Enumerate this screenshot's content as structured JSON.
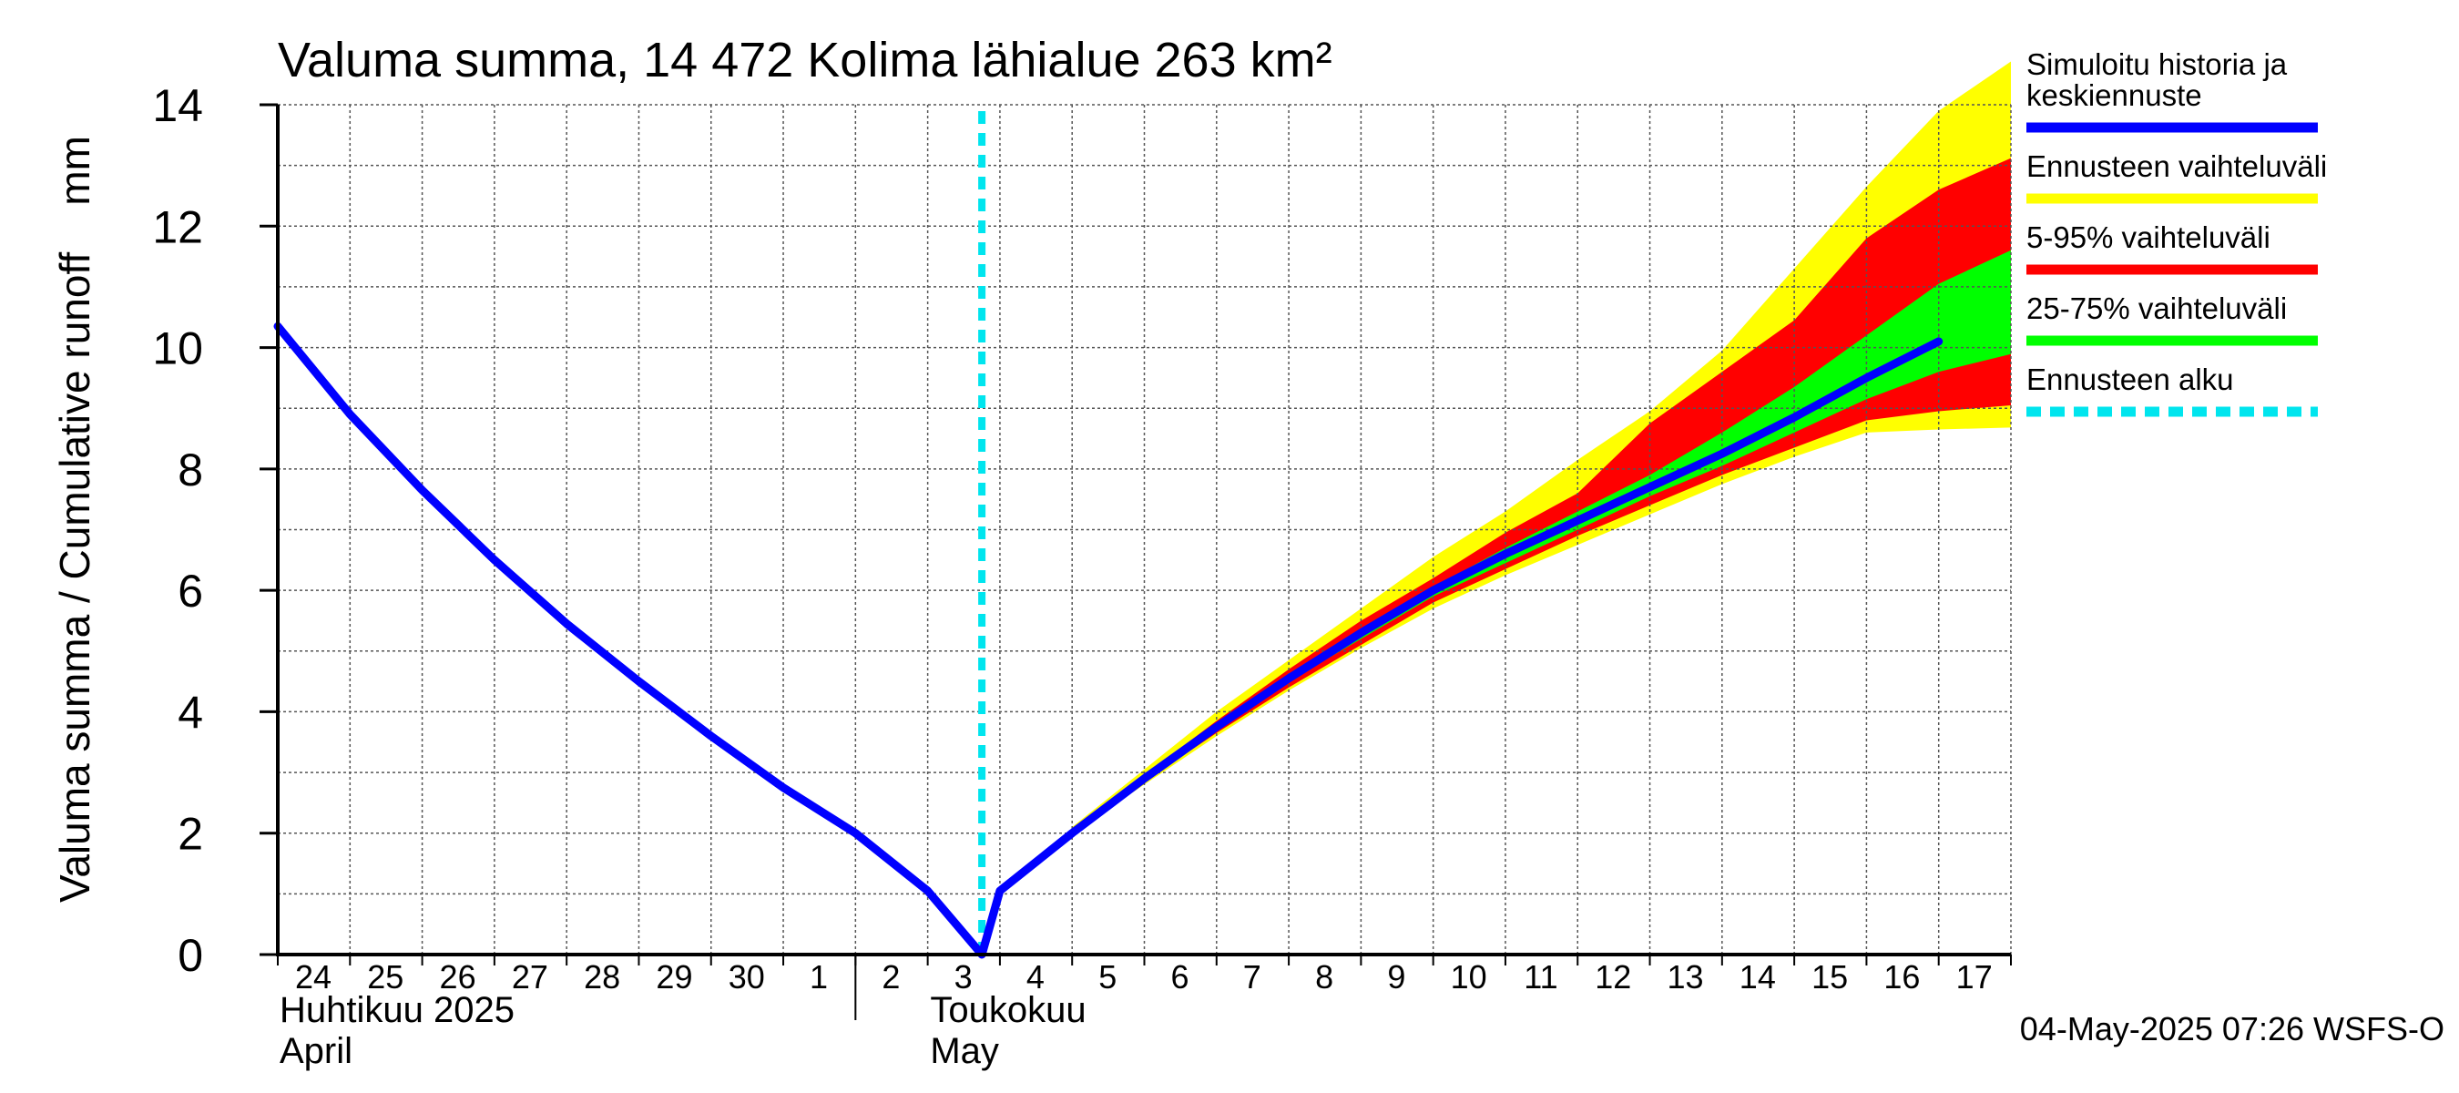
{
  "chart_data": {
    "type": "area",
    "title": "Valuma summa, 14 472 Kolima lähialue 263 km²",
    "ylabel": "Valuma summa / Cumulative runoff    mm",
    "ylim": [
      0,
      14
    ],
    "yticks": [
      "0",
      "2",
      "4",
      "6",
      "8",
      "10",
      "12",
      "14"
    ],
    "x_day_labels": [
      "24",
      "25",
      "26",
      "27",
      "28",
      "29",
      "30",
      "1",
      "2",
      "3",
      "4",
      "5",
      "6",
      "7",
      "8",
      "9",
      "10",
      "11",
      "12",
      "13",
      "14",
      "15",
      "16",
      "17"
    ],
    "x_start": "2025-04-24",
    "x_end": "2025-05-18",
    "month_labels": [
      {
        "fi": "Huhtikuu  2025",
        "en": "April",
        "date": "2025-04-24"
      },
      {
        "fi": "Toukokuu",
        "en": "May",
        "date": "2025-05-02"
      }
    ],
    "forecast_start": "2025-05-03T18:00",
    "series": [
      {
        "name": "Simuloitu historia ja keskiennuste",
        "color": "#0000ff",
        "points": [
          [
            "2025-04-24",
            10.35
          ],
          [
            "2025-04-25",
            8.9
          ],
          [
            "2025-04-26",
            7.65
          ],
          [
            "2025-04-27",
            6.5
          ],
          [
            "2025-04-28",
            5.45
          ],
          [
            "2025-04-29",
            4.5
          ],
          [
            "2025-04-30",
            3.6
          ],
          [
            "2025-05-01",
            2.75
          ],
          [
            "2025-05-02",
            2.0
          ],
          [
            "2025-05-03",
            1.05
          ],
          [
            "2025-05-03T18:00",
            0.0
          ],
          [
            "2025-05-04",
            1.05
          ],
          [
            "2025-05-05",
            2.0
          ],
          [
            "2025-05-06",
            2.9
          ],
          [
            "2025-05-07",
            3.75
          ],
          [
            "2025-05-08",
            4.55
          ],
          [
            "2025-05-09",
            5.3
          ],
          [
            "2025-05-10",
            6.0
          ],
          [
            "2025-05-11",
            6.6
          ],
          [
            "2025-05-12",
            7.15
          ],
          [
            "2025-05-13",
            7.7
          ],
          [
            "2025-05-14",
            8.25
          ],
          [
            "2025-05-15",
            8.85
          ],
          [
            "2025-05-16",
            9.5
          ],
          [
            "2025-05-17",
            10.1
          ]
        ]
      }
    ],
    "bands": [
      {
        "name": "Ennusteen vaihteluväli",
        "color": "#ffff00",
        "dates": [
          "2025-05-05",
          "2025-05-06",
          "2025-05-07",
          "2025-05-08",
          "2025-05-09",
          "2025-05-10",
          "2025-05-11",
          "2025-05-12",
          "2025-05-13",
          "2025-05-14",
          "2025-05-15",
          "2025-05-16",
          "2025-05-17"
        ],
        "low": [
          2.0,
          2.8,
          3.6,
          4.35,
          5.05,
          5.7,
          6.25,
          6.75,
          7.25,
          7.75,
          8.2,
          8.6,
          8.65
        ],
        "high": [
          2.1,
          3.05,
          4.0,
          4.85,
          5.7,
          6.55,
          7.3,
          8.15,
          8.95,
          9.95,
          11.3,
          12.65,
          13.9
        ]
      },
      {
        "name": "5-95% vaihteluväli",
        "color": "#ff0000",
        "dates": [
          "2025-05-05",
          "2025-05-06",
          "2025-05-07",
          "2025-05-08",
          "2025-05-09",
          "2025-05-10",
          "2025-05-11",
          "2025-05-12",
          "2025-05-13",
          "2025-05-14",
          "2025-05-15",
          "2025-05-16",
          "2025-05-17"
        ],
        "low": [
          2.0,
          2.85,
          3.65,
          4.4,
          5.1,
          5.8,
          6.35,
          6.9,
          7.4,
          7.9,
          8.35,
          8.8,
          8.95
        ],
        "high": [
          2.05,
          2.95,
          3.85,
          4.7,
          5.5,
          6.2,
          6.95,
          7.6,
          8.75,
          9.6,
          10.45,
          11.8,
          12.6
        ]
      },
      {
        "name": "25-75% vaihteluväli",
        "color": "#00ff00",
        "dates": [
          "2025-05-05",
          "2025-05-06",
          "2025-05-07",
          "2025-05-08",
          "2025-05-09",
          "2025-05-10",
          "2025-05-11",
          "2025-05-12",
          "2025-05-13",
          "2025-05-14",
          "2025-05-15",
          "2025-05-16",
          "2025-05-17"
        ],
        "low": [
          2.0,
          2.9,
          3.7,
          4.5,
          5.2,
          5.9,
          6.45,
          7.0,
          7.55,
          8.05,
          8.6,
          9.15,
          9.6
        ],
        "high": [
          2.0,
          2.9,
          3.8,
          4.6,
          5.35,
          6.05,
          6.7,
          7.3,
          7.9,
          8.6,
          9.35,
          10.2,
          11.05
        ]
      }
    ],
    "legend": {
      "placement": "right",
      "items": [
        {
          "lines": [
            "Simuloitu historia ja",
            "keskiennuste"
          ],
          "color": "#0000ff",
          "style": "solid"
        },
        {
          "lines": [
            "Ennusteen vaihteluväli"
          ],
          "color": "#ffff00",
          "style": "solid"
        },
        {
          "lines": [
            "5-95% vaihteluväli"
          ],
          "color": "#ff0000",
          "style": "solid"
        },
        {
          "lines": [
            "25-75% vaihteluväli"
          ],
          "color": "#00ff00",
          "style": "solid"
        },
        {
          "lines": [
            "Ennusteen alku"
          ],
          "color": "#00e5ee",
          "style": "dashed"
        }
      ]
    },
    "grid": true,
    "footer": "04-May-2025 07:26 WSFS-O"
  }
}
